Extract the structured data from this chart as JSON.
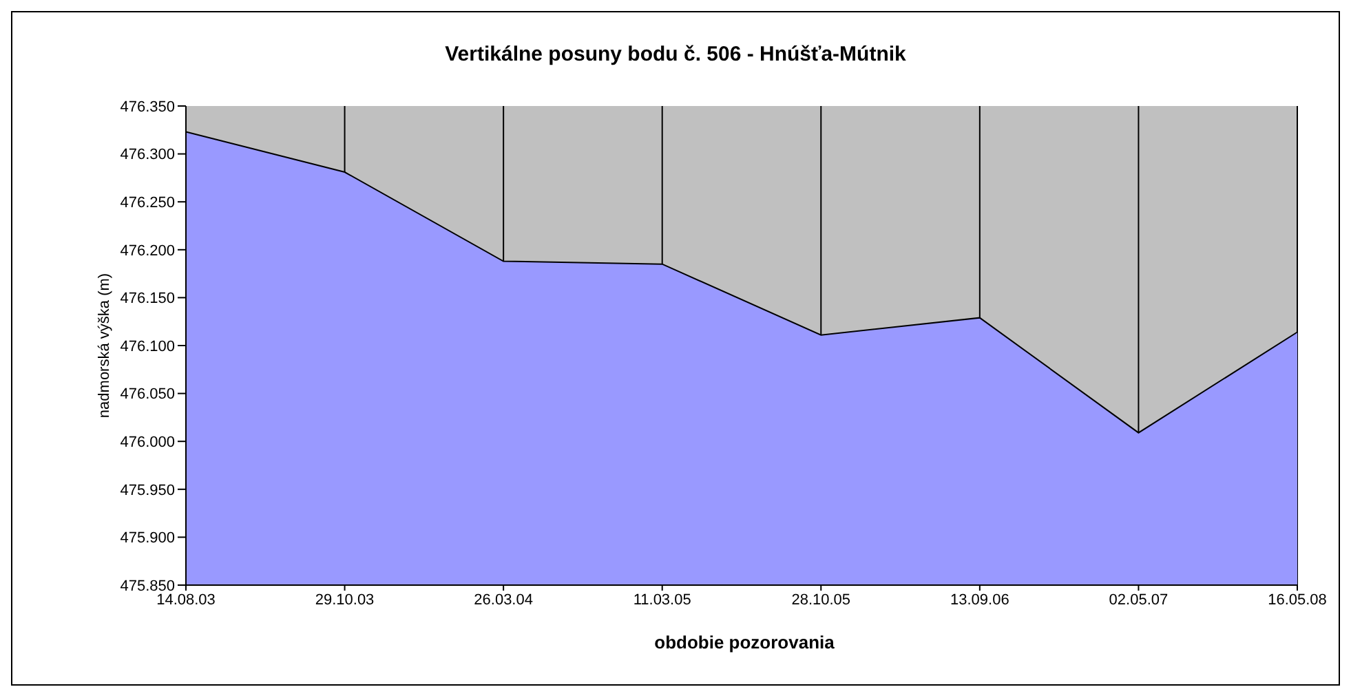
{
  "chart_data": {
    "type": "area",
    "title": "Vertikálne posuny bodu č. 506 - Hnúšťa-Mútnik",
    "xlabel": "obdobie pozorovania",
    "ylabel": "nadmorská výška (m)",
    "categories": [
      "14.08.03",
      "29.10.03",
      "26.03.04",
      "11.03.05",
      "28.10.05",
      "13.09.06",
      "02.05.07",
      "16.05.08"
    ],
    "series": [
      {
        "color": "#9999ff",
        "values": [
          476.323,
          476.281,
          476.188,
          476.185,
          476.111,
          476.129,
          476.009,
          476.114
        ]
      }
    ],
    "ylim": [
      475.85,
      476.35
    ],
    "yticks": [
      {
        "value": 475.85,
        "label": "475.850"
      },
      {
        "value": 475.9,
        "label": "475.900"
      },
      {
        "value": 475.95,
        "label": "475.950"
      },
      {
        "value": 476.0,
        "label": "476.000"
      },
      {
        "value": 476.05,
        "label": "476.050"
      },
      {
        "value": 476.1,
        "label": "476.100"
      },
      {
        "value": 476.15,
        "label": "476.150"
      },
      {
        "value": 476.2,
        "label": "476.200"
      },
      {
        "value": 476.25,
        "label": "476.250"
      },
      {
        "value": 476.3,
        "label": "476.300"
      },
      {
        "value": 476.35,
        "label": "476.350"
      }
    ],
    "grid": "x",
    "legend": false
  }
}
